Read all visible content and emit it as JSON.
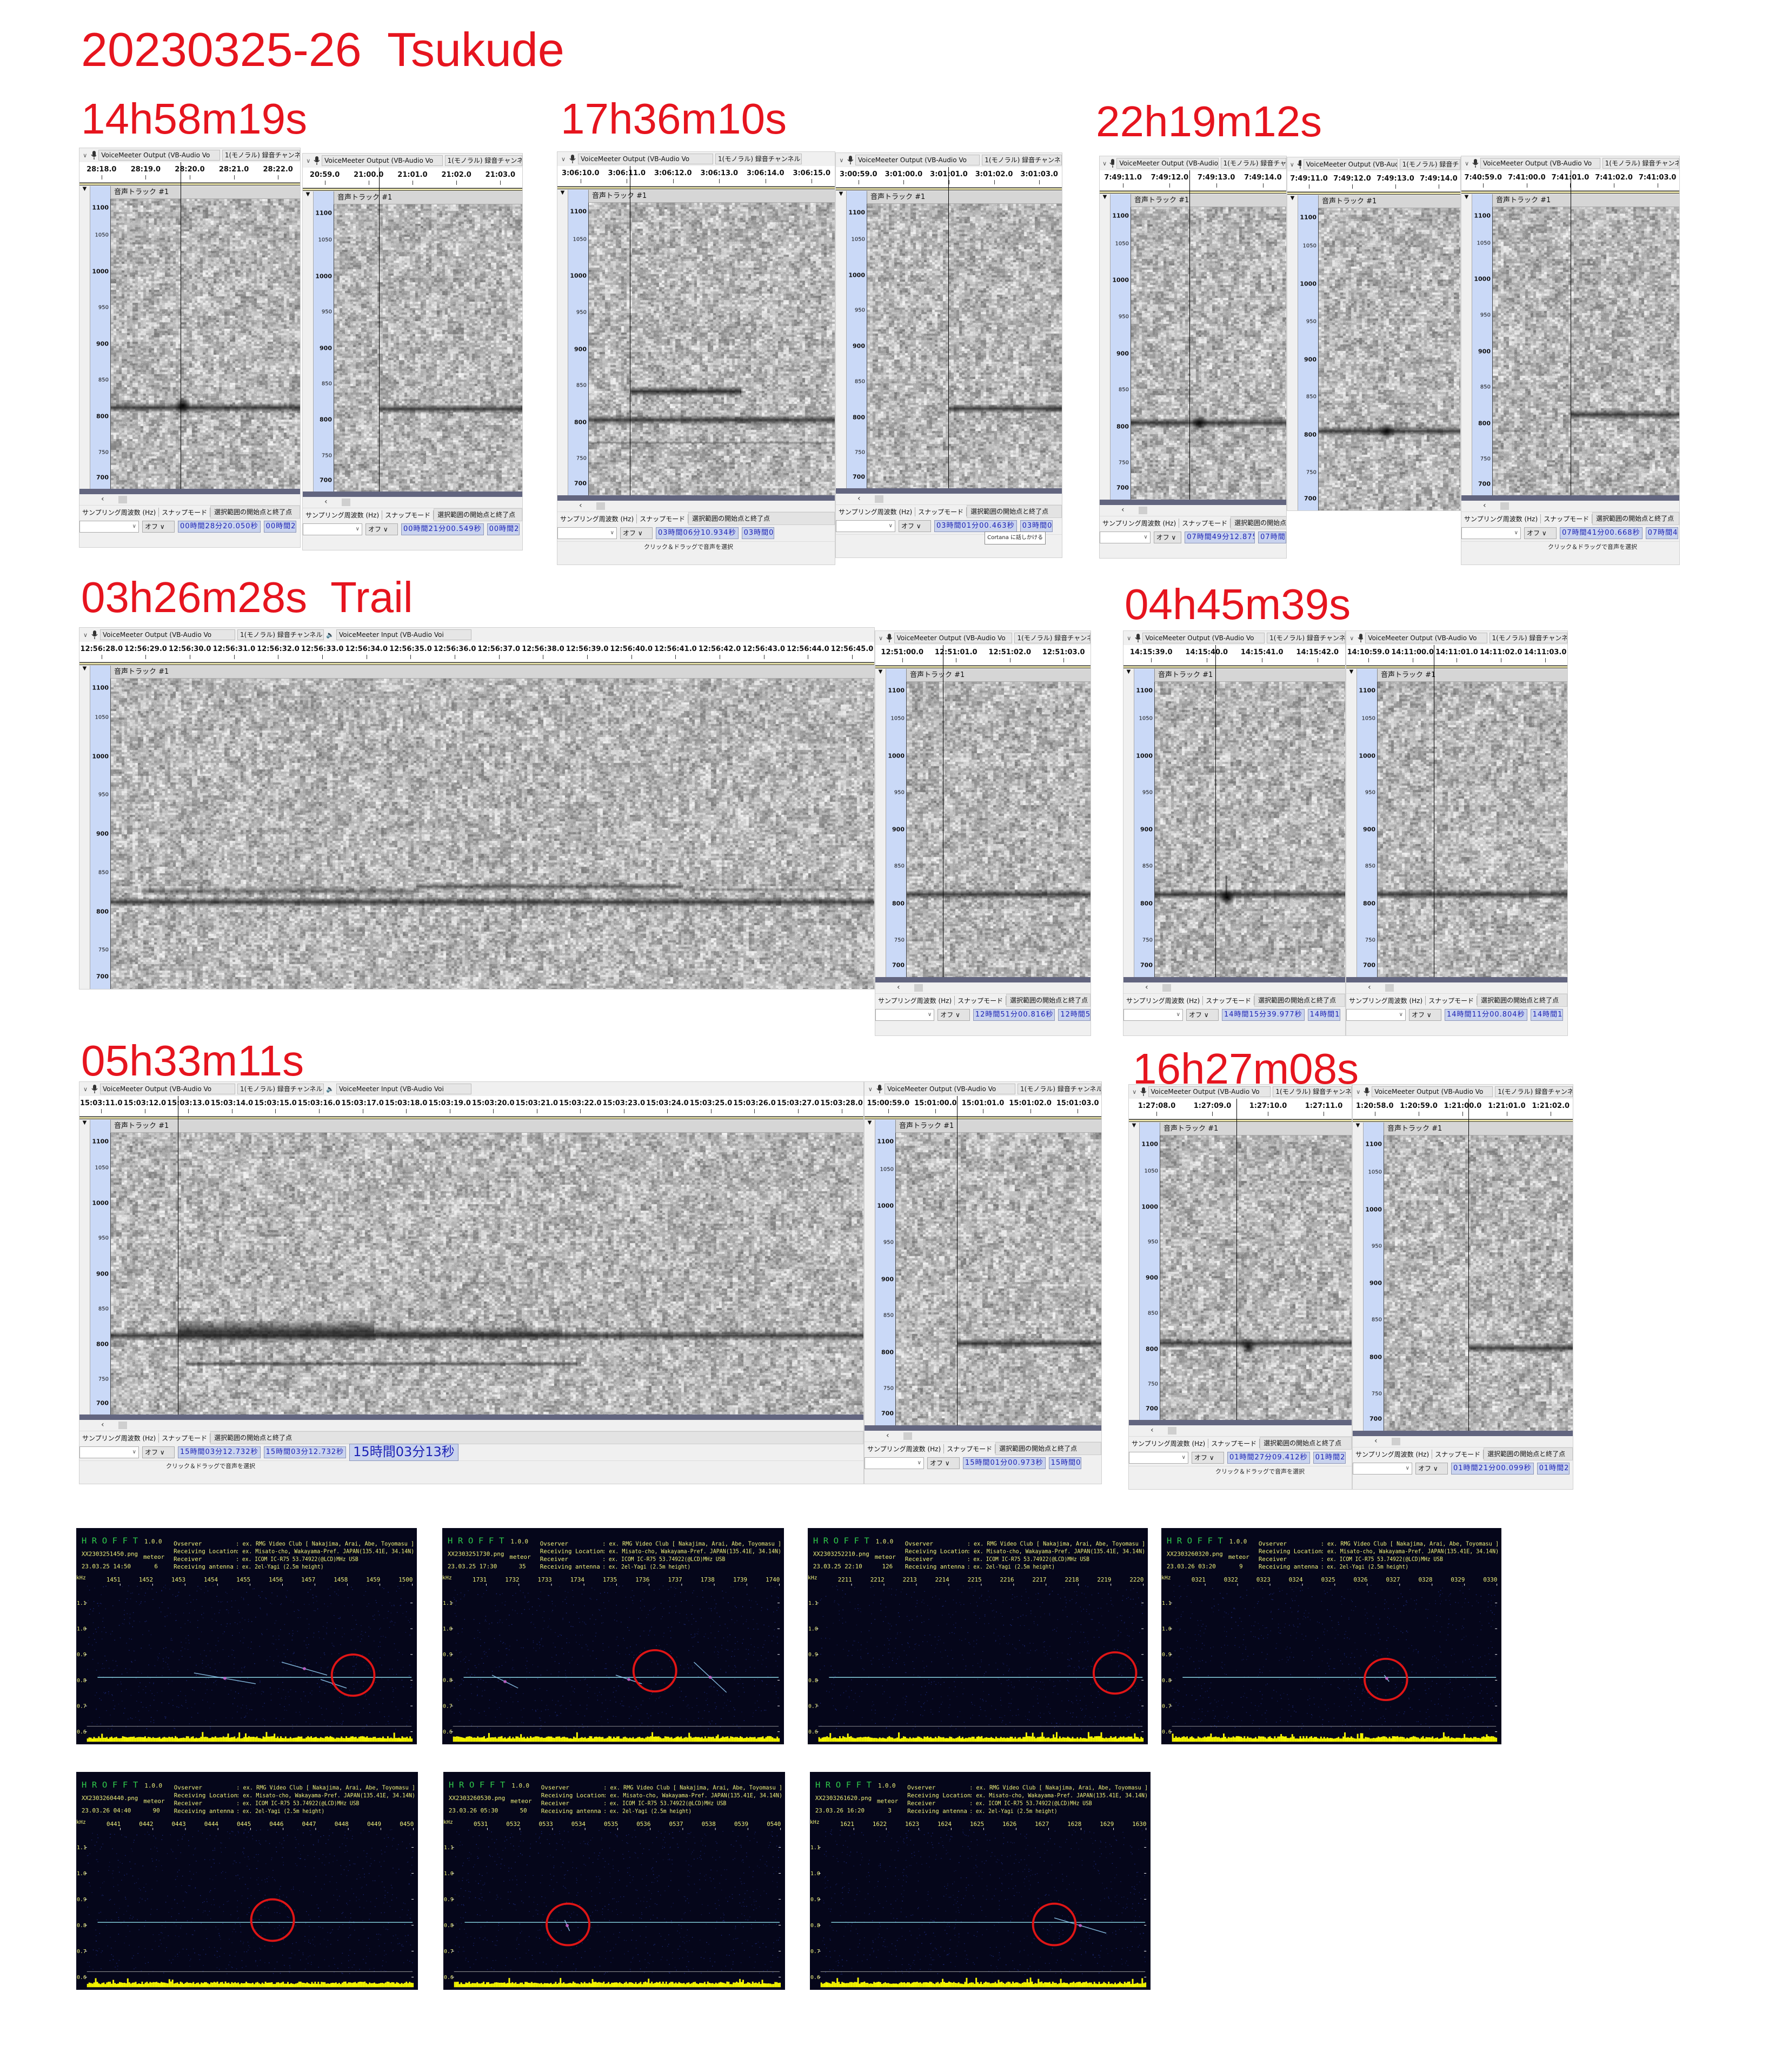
{
  "title": "20230325-26  Tsukude",
  "colors": {
    "label": "#e6141e",
    "axis_bg": "#cad9f7",
    "time_field_text": "#1c22b4",
    "hrofft_bg": "#05061a",
    "hrofft_text": "#eef07a",
    "hrofft_logo": "#2ec84a",
    "circle": "#e01515",
    "carrier": "#8fdcea",
    "power_strip": "#f5f500"
  },
  "common": {
    "device": "VoiceMeeter Output (VB-Audio Vo",
    "device_in": "VoiceMeeter Input (VB-Audio Voi",
    "channel": "1(モノラル) 録音チャンネル",
    "track": "音声トラック #1",
    "freq_ticks": [
      "1100",
      "1050",
      "1000",
      "950",
      "900",
      "850",
      "800",
      "750",
      "700"
    ],
    "rate_label": "サンプリング周波数 (Hz)",
    "snap_label": "スナップモード",
    "sel_label": "選択範囲の開始点と終了点",
    "snap_value": "オフ",
    "status": "クリック＆ドラッグで音声を選択"
  },
  "events": [
    {
      "label": "14h58m19s",
      "panels": [
        {
          "ticks": [
            "28:18.0",
            "28:19.0",
            "28:20.0",
            "28:21.0",
            "28:22.0"
          ],
          "selection": "00時間28分20.050秒",
          "sel_end": "00時間28分20.050秒"
        },
        {
          "ticks": [
            "20:59.0",
            "21:00.0",
            "21:01.0",
            "21:02.0",
            "21:03.0"
          ],
          "selection": "00時間21分00.549秒",
          "sel_end": "00時間21分00.549秒"
        }
      ]
    },
    {
      "label": "17h36m10s",
      "panels": [
        {
          "ticks": [
            "3:06:10.0",
            "3:06:11.0",
            "3:06:12.0",
            "3:06:13.0",
            "3:06:14.0",
            "3:06:15.0"
          ],
          "selection": "03時間06分10.934秒",
          "sel_end": "03時間06分10.934秒"
        },
        {
          "ticks": [
            "3:00:59.0",
            "3:01:00.0",
            "3:01:01.0",
            "3:01:02.0",
            "3:01:03.0"
          ],
          "selection": "03時間01分00.463秒",
          "sel_end": "03時間01分00.463秒",
          "tooltip": "Cortana に話しかける"
        }
      ]
    },
    {
      "label": "22h19m12s",
      "panels": [
        {
          "ticks": [
            "7:49:11.0",
            "7:49:12.0",
            "7:49:13.0",
            "7:49:14.0"
          ],
          "selection": "07時間49分12.875秒",
          "sel_end": "07時間49分12.875秒"
        },
        {
          "ticks": [
            "7:49:11.0",
            "7:49:12.0",
            "7:49:13.0",
            "7:49:14.0"
          ]
        },
        {
          "ticks": [
            "7:40:59.0",
            "7:41:00.0",
            "7:41:01.0",
            "7:41:02.0",
            "7:41:03.0"
          ],
          "selection": "07時間41分00.668秒",
          "sel_end": "07時間41分00.668秒"
        }
      ]
    },
    {
      "label": "03h26m28s  Trail",
      "panels": [
        {
          "ticks": [
            "12:56:28.0",
            "12:56:29.0",
            "12:56:30.0",
            "12:56:31.0",
            "12:56:32.0",
            "12:56:33.0",
            "12:56:34.0",
            "12:56:35.0",
            "12:56:36.0",
            "12:56:37.0",
            "12:56:38.0",
            "12:56:39.0",
            "12:56:40.0",
            "12:56:41.0",
            "12:56:42.0",
            "12:56:43.0",
            "12:56:44.0",
            "12:56:45.0"
          ]
        },
        {
          "ticks": [
            "12:51:00.0",
            "12:51:01.0",
            "12:51:02.0",
            "12:51:03.0"
          ],
          "selection": "12時間51分00.816秒",
          "sel_end": "12時間51分00.816秒"
        }
      ]
    },
    {
      "label": "04h45m39s",
      "panels": [
        {
          "ticks": [
            "14:15:39.0",
            "14:15:40.0",
            "14:15:41.0",
            "14:15:42.0"
          ],
          "selection": "14時間15分39.977秒",
          "sel_end": "14時間15分39.977秒"
        },
        {
          "ticks": [
            "14:10:59.0",
            "14:11:00.0",
            "14:11:01.0",
            "14:11:02.0",
            "14:11:03.0"
          ],
          "selection": "14時間11分00.804秒",
          "sel_end": "14時間11分00.804秒"
        }
      ]
    },
    {
      "label": "05h33m11s",
      "panels": [
        {
          "ticks": [
            "15:03:11.0",
            "15:03:12.0",
            "15:03:13.0",
            "15:03:14.0",
            "15:03:15.0",
            "15:03:16.0",
            "15:03:17.0",
            "15:03:18.0",
            "15:03:19.0",
            "15:03:20.0",
            "15:03:21.0",
            "15:03:22.0",
            "15:03:23.0",
            "15:03:24.0",
            "15:03:25.0",
            "15:03:26.0",
            "15:03:27.0",
            "15:03:28.0"
          ],
          "selection": "15時間03分12.732秒",
          "sel_end": "15時間03分12.732秒",
          "big_time": "15時間03分13秒"
        },
        {
          "ticks": [
            "15:00:59.0",
            "15:01:00.0",
            "15:01:01.0",
            "15:01:02.0",
            "15:01:03.0"
          ],
          "selection": "15時間01分00.973秒",
          "sel_end": "15時間01分00.973秒"
        }
      ]
    },
    {
      "label": "16h27m08s",
      "panels": [
        {
          "ticks": [
            "1:27:08.0",
            "1:27:09.0",
            "1:27:10.0",
            "1:27:11.0"
          ],
          "selection": "01時間27分09.412秒",
          "sel_end": "01時間27分09.412秒"
        },
        {
          "ticks": [
            "1:20:58.0",
            "1:20:59.0",
            "1:21:00.0",
            "1:21:01.0",
            "1:21:02.0"
          ],
          "selection": "01時間21分00.099秒",
          "sel_end": "01時間21分00.099秒"
        }
      ]
    }
  ],
  "hrofft": {
    "logo": "H R O F F T",
    "version": "1.0.0",
    "meteor_label": "meteor",
    "khz": "kHz",
    "yticks": [
      "1.1",
      "1.0",
      "0.9",
      "0.8",
      "0.7",
      "0.6"
    ],
    "info": [
      {
        "label": "Ovserver",
        "value": ": ex. RMG Video Club [ Nakajima, Arai, Abe, Toyomasu ]"
      },
      {
        "label": "Receiving Location",
        "value": ": ex. Misato-cho, Wakayama-Pref. JAPAN(135.41E, 34.14N)"
      },
      {
        "label": "Receiver",
        "value": ": ex. ICOM IC-R75 53.74922(@LCD)MHz USB"
      },
      {
        "label": "Receiving antenna",
        "value": ": ex. 2el-Yagi (2.5m height)"
      }
    ],
    "panels": [
      {
        "file": "XX2303251450.png",
        "datetime": "23.03.25 14:50",
        "count": "6",
        "xticks": [
          "1451",
          "1452",
          "1453",
          "1454",
          "1455",
          "1456",
          "1457",
          "1458",
          "1459",
          "1500"
        ]
      },
      {
        "file": "XX2303251730.png",
        "datetime": "23.03.25 17:30",
        "count": "35",
        "xticks": [
          "1731",
          "1732",
          "1733",
          "1734",
          "1735",
          "1736",
          "1737",
          "1738",
          "1739",
          "1740"
        ]
      },
      {
        "file": "XX2303252210.png",
        "datetime": "23.03.25 22:10",
        "count": "126",
        "xticks": [
          "2211",
          "2212",
          "2213",
          "2214",
          "2215",
          "2216",
          "2217",
          "2218",
          "2219",
          "2220"
        ]
      },
      {
        "file": "XX2303260320.png",
        "datetime": "23.03.26 03:20",
        "count": "9",
        "xticks": [
          "0321",
          "0322",
          "0323",
          "0324",
          "0325",
          "0326",
          "0327",
          "0328",
          "0329",
          "0330"
        ]
      },
      {
        "file": "XX2303260440.png",
        "datetime": "23.03.26 04:40",
        "count": "90",
        "xticks": [
          "0441",
          "0442",
          "0443",
          "0444",
          "0445",
          "0446",
          "0447",
          "0448",
          "0449",
          "0450"
        ]
      },
      {
        "file": "XX2303260530.png",
        "datetime": "23.03.26 05:30",
        "count": "50",
        "xticks": [
          "0531",
          "0532",
          "0533",
          "0534",
          "0535",
          "0536",
          "0537",
          "0538",
          "0539",
          "0540"
        ]
      },
      {
        "file": "XX2303261620.png",
        "datetime": "23.03.26 16:20",
        "count": "3",
        "xticks": [
          "1621",
          "1622",
          "1623",
          "1624",
          "1625",
          "1626",
          "1627",
          "1628",
          "1629",
          "1630"
        ]
      }
    ]
  }
}
